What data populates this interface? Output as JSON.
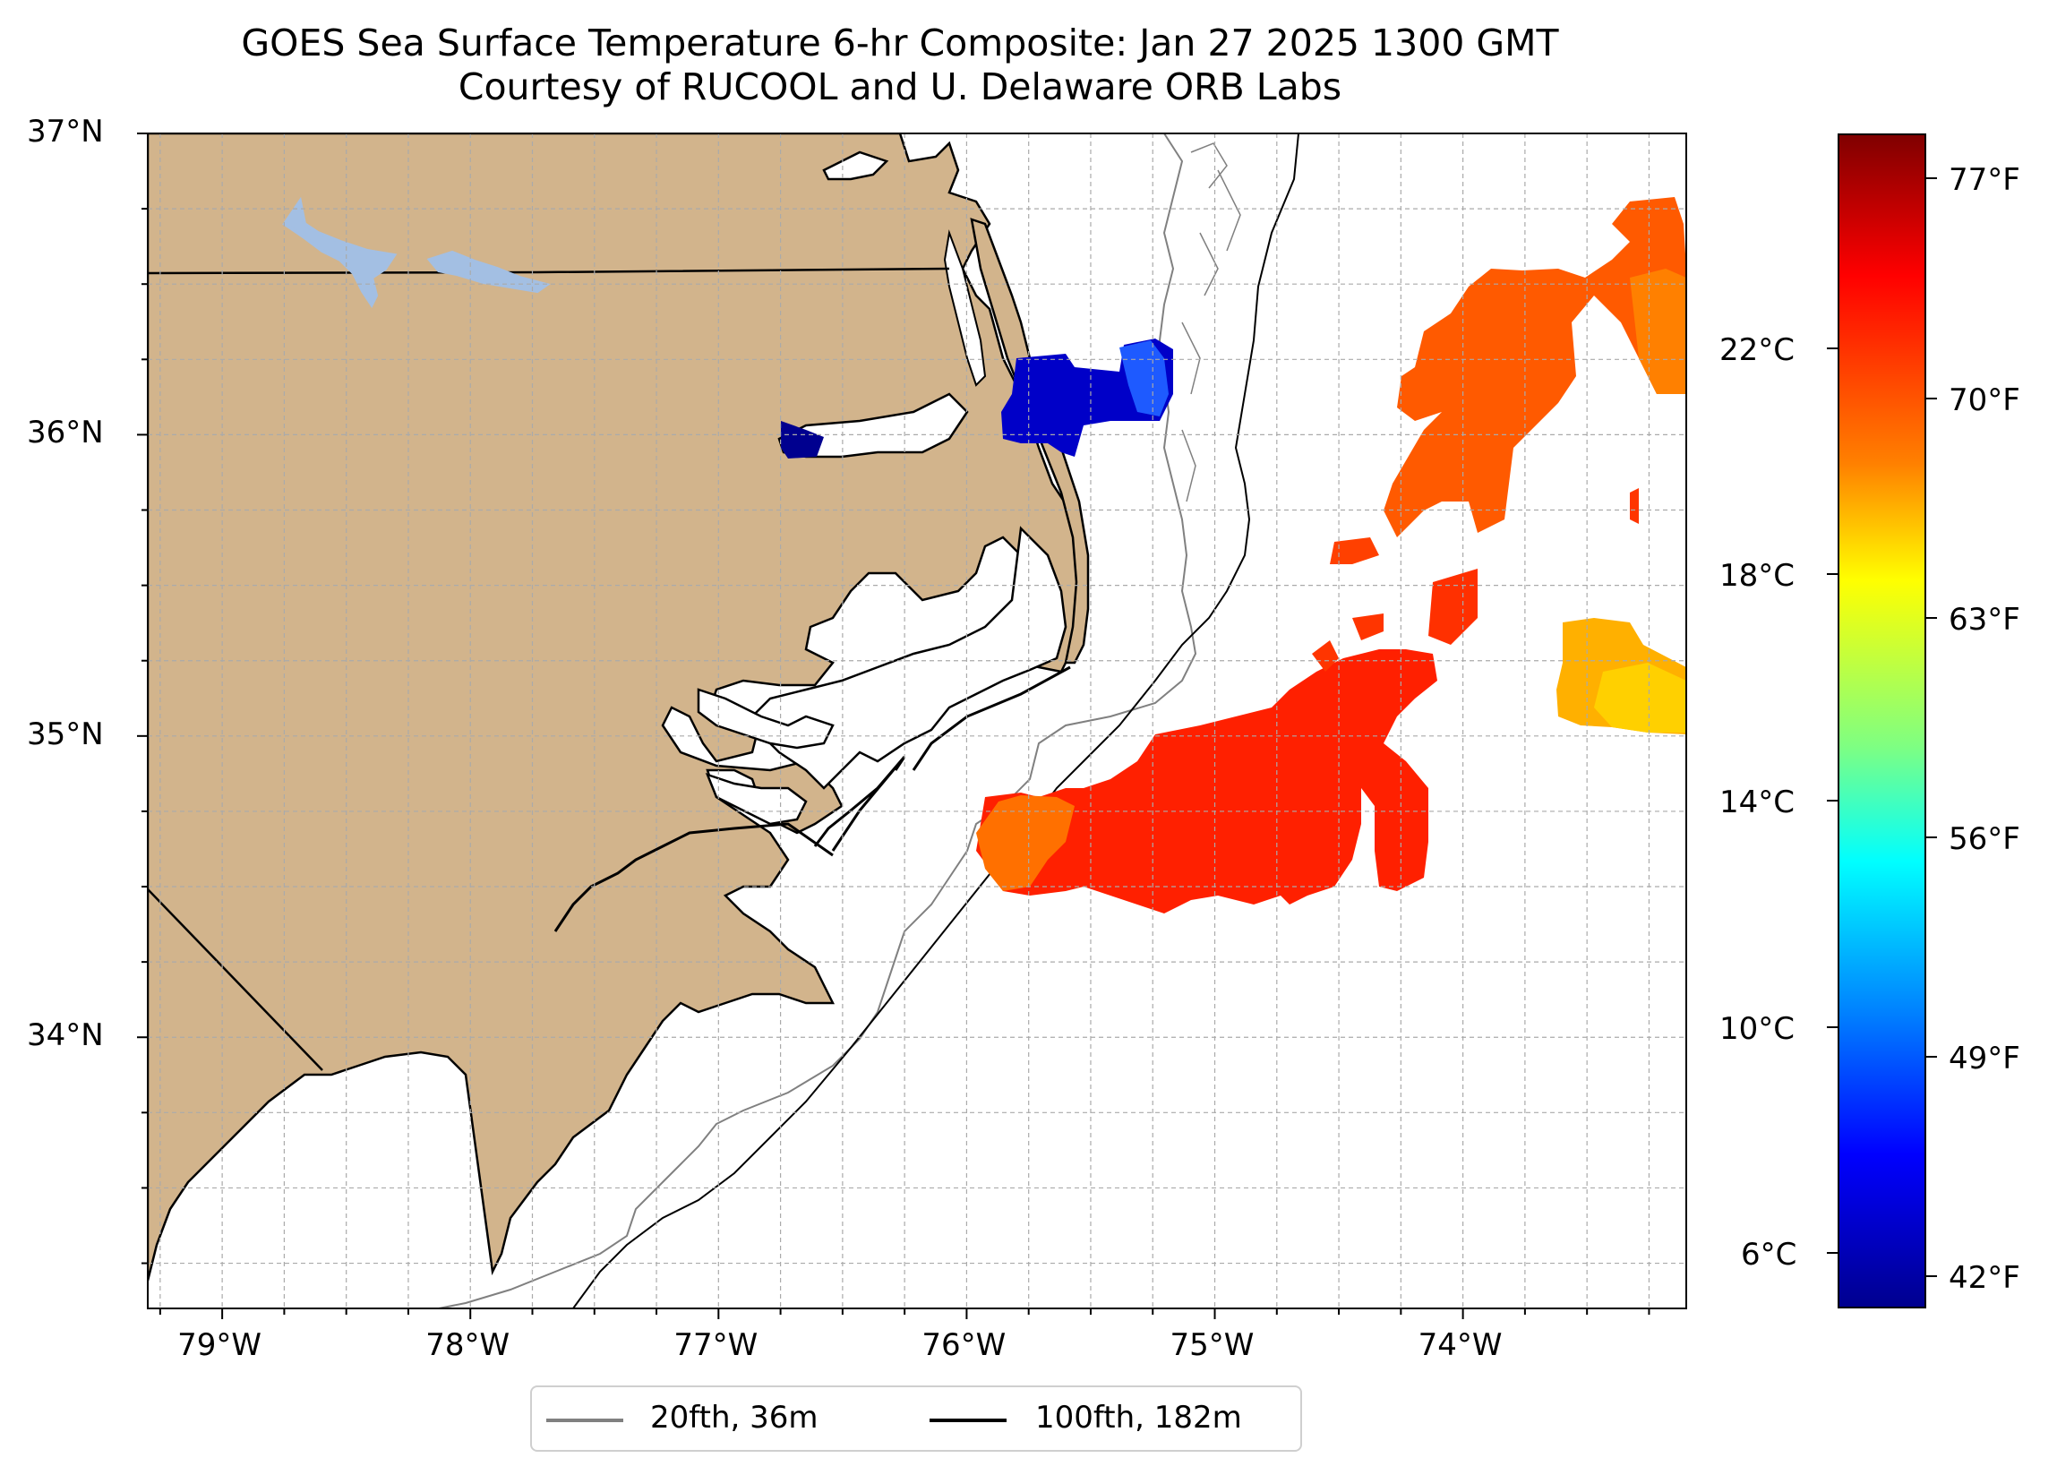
{
  "title": {
    "line1": "GOES Sea Surface Temperature 6-hr Composite: Jan 27 2025 1300 GMT",
    "line2": "Courtesy of RUCOOL and U. Delaware ORB Labs"
  },
  "map": {
    "lat_range": [
      33.1,
      37.0
    ],
    "lon_range": [
      -79.3,
      -73.1
    ],
    "lat_ticks": [
      {
        "value": 37,
        "label": "37°N"
      },
      {
        "value": 36,
        "label": "36°N"
      },
      {
        "value": 35,
        "label": "35°N"
      },
      {
        "value": 34,
        "label": "34°N"
      }
    ],
    "lon_ticks": [
      {
        "value": -79,
        "label": "79°W"
      },
      {
        "value": -78,
        "label": "78°W"
      },
      {
        "value": -77,
        "label": "77°W"
      },
      {
        "value": -76,
        "label": "76°W"
      },
      {
        "value": -75,
        "label": "75°W"
      },
      {
        "value": -74,
        "label": "74°W"
      }
    ],
    "grid": true,
    "land_color": "#d2b48c",
    "lake_color": "#a3bfe3"
  },
  "colorbar": {
    "celsius_labels": [
      "22°C",
      "18°C",
      "14°C",
      "10°C",
      "6°C"
    ],
    "fahrenheit_labels": [
      "77°F",
      "70°F",
      "63°F",
      "56°F",
      "49°F",
      "42°F"
    ],
    "colormap": "jet"
  },
  "legend": {
    "items": [
      {
        "label": "20fth, 36m",
        "color": "#808080"
      },
      {
        "label": "100fth, 182m",
        "color": "#000000"
      }
    ]
  }
}
